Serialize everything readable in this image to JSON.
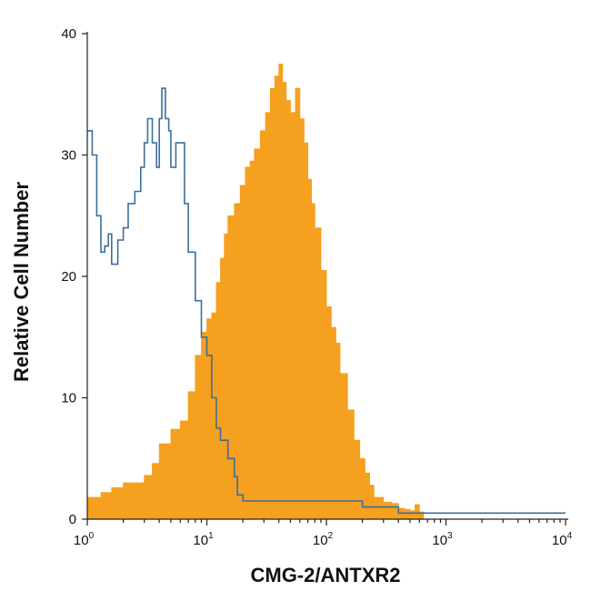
{
  "chart_data": {
    "type": "area",
    "title": "",
    "xlabel": "CMG-2/ANTXR2",
    "ylabel": "Relative Cell Number",
    "x_scale": "log",
    "xlim": [
      1,
      10000
    ],
    "ylim": [
      0,
      40
    ],
    "grid": false,
    "x_ticks": [
      {
        "value": 1,
        "base": "10",
        "exp": "0"
      },
      {
        "value": 10,
        "base": "10",
        "exp": "1"
      },
      {
        "value": 100,
        "base": "10",
        "exp": "2"
      },
      {
        "value": 1000,
        "base": "10",
        "exp": "3"
      },
      {
        "value": 10000,
        "base": "10",
        "exp": "4"
      }
    ],
    "y_ticks": [
      "0",
      "10",
      "20",
      "30",
      "40"
    ],
    "colors": {
      "filled": "#f5a01e",
      "outline": "#3d6f9a"
    },
    "series": [
      {
        "style": "filled",
        "x": [
          1,
          1.3,
          1.6,
          2,
          2.5,
          3,
          3.5,
          4,
          5,
          6,
          7,
          8,
          9,
          10,
          11,
          12,
          13,
          14,
          15,
          17,
          19,
          21,
          23,
          25,
          28,
          31,
          34,
          37,
          40,
          43,
          46,
          50,
          55,
          60,
          65,
          70,
          75,
          80,
          90,
          100,
          110,
          120,
          130,
          150,
          170,
          190,
          210,
          230,
          250,
          300,
          350,
          400,
          450,
          500,
          550,
          600,
          650
        ],
        "y": [
          1.8,
          2.2,
          2.6,
          3.0,
          3.0,
          3.6,
          4.6,
          6.2,
          7.4,
          8.1,
          10.5,
          13.5,
          15.4,
          16.5,
          17.0,
          19.5,
          21.5,
          23.5,
          25.0,
          26.0,
          27.5,
          29.0,
          29.5,
          30.5,
          32.0,
          33.5,
          35.5,
          36.5,
          37.5,
          36.0,
          34.5,
          33.5,
          35.5,
          33.0,
          31.0,
          28.0,
          26.0,
          24.0,
          20.5,
          17.5,
          15.8,
          14.5,
          12.0,
          9.0,
          6.5,
          5.0,
          3.8,
          2.8,
          1.8,
          1.4,
          1.3,
          0.9,
          0.8,
          0.7,
          1.2,
          0.6,
          0.5
        ]
      },
      {
        "style": "outline",
        "x": [
          1,
          1.1,
          1.2,
          1.3,
          1.4,
          1.5,
          1.6,
          1.8,
          2,
          2.2,
          2.5,
          2.8,
          3,
          3.2,
          3.5,
          3.8,
          4,
          4.2,
          4.5,
          4.8,
          5,
          5.5,
          6,
          6.5,
          7,
          8,
          9,
          10,
          11,
          12,
          13,
          15,
          17,
          18,
          20,
          25,
          30,
          40,
          45,
          50,
          60,
          70,
          80,
          90,
          100,
          120,
          130,
          150,
          170,
          200,
          220,
          250,
          300,
          400,
          600,
          1000,
          2000,
          5000,
          10000
        ],
        "y": [
          32.0,
          30.0,
          25.0,
          22.0,
          22.5,
          23.5,
          21.0,
          23.0,
          24.0,
          26.0,
          27.0,
          29.0,
          31.0,
          33.0,
          31.0,
          29.0,
          33.0,
          35.5,
          33.0,
          32.0,
          29.0,
          31.0,
          31.0,
          26.0,
          22.0,
          18.0,
          15.0,
          13.5,
          10.0,
          7.5,
          6.5,
          5.0,
          3.5,
          2.0,
          1.5,
          1.5,
          1.5,
          1.5,
          1.5,
          1.5,
          1.5,
          1.5,
          1.5,
          1.5,
          1.5,
          1.5,
          1.5,
          1.5,
          1.5,
          1.0,
          1.0,
          1.0,
          1.0,
          0.5,
          0.5,
          0.5,
          0.5,
          0.5,
          0.5
        ]
      }
    ]
  }
}
